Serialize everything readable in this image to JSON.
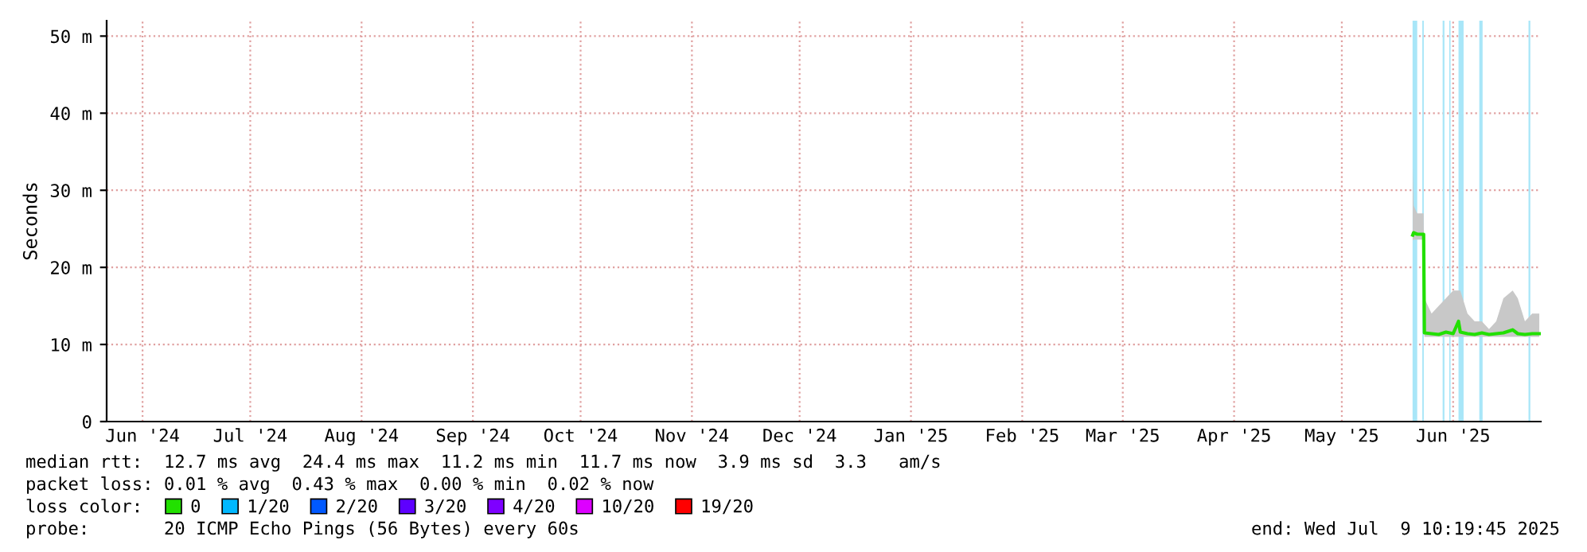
{
  "chart_data": {
    "type": "line",
    "ylabel": "Seconds",
    "xlim": [
      "2024-06-05",
      "2025-07-09T10:19"
    ],
    "xticks": [
      {
        "value": "2024-06-15",
        "label": "Jun '24"
      },
      {
        "value": "2024-07-15",
        "label": "Jul '24"
      },
      {
        "value": "2024-08-15",
        "label": "Aug '24"
      },
      {
        "value": "2024-09-15",
        "label": "Sep '24"
      },
      {
        "value": "2024-10-15",
        "label": "Oct '24"
      },
      {
        "value": "2024-11-15",
        "label": "Nov '24"
      },
      {
        "value": "2024-12-15",
        "label": "Dec '24"
      },
      {
        "value": "2025-01-15",
        "label": "Jan '25"
      },
      {
        "value": "2025-02-15",
        "label": "Feb '25"
      },
      {
        "value": "2025-03-15",
        "label": "Mar '25"
      },
      {
        "value": "2025-04-15",
        "label": "Apr '25"
      },
      {
        "value": "2025-05-15",
        "label": "May '25"
      },
      {
        "value": "2025-06-15",
        "label": "Jun '25"
      }
    ],
    "ylim": [
      0,
      52
    ],
    "yticks": [
      0,
      {
        "value": 10,
        "label": "10 m"
      },
      {
        "value": 20,
        "label": "20 m"
      },
      {
        "value": 30,
        "label": "30 m"
      },
      {
        "value": 40,
        "label": "40 m"
      },
      {
        "value": 50,
        "label": "50 m"
      }
    ],
    "grid": true,
    "legend": "bottom",
    "series": [
      {
        "name": "0",
        "color": "#22e000",
        "x": [
          "2025-06-03T18:00",
          "2025-06-04",
          "2025-06-05",
          "2025-06-06T19:00",
          "2025-06-07",
          "2025-06-09",
          "2025-06-11",
          "2025-06-13",
          "2025-06-15",
          "2025-06-16T12:00",
          "2025-06-17",
          "2025-06-19",
          "2025-06-21",
          "2025-06-23",
          "2025-06-25",
          "2025-06-27",
          "2025-06-29",
          "2025-07-01T14:00",
          "2025-07-03",
          "2025-07-05",
          "2025-07-07",
          "2025-07-09"
        ],
        "values": [
          24.2,
          24.5,
          24.3,
          24.3,
          11.5,
          11.4,
          11.3,
          11.6,
          11.4,
          13,
          11.6,
          11.4,
          11.3,
          11.5,
          11.3,
          11.4,
          11.5,
          11.9,
          11.4,
          11.3,
          11.4,
          11.4
        ],
        "lower": [
          23.5,
          23.6,
          23.6,
          23.6,
          11,
          11,
          11,
          11,
          11,
          11,
          11,
          11,
          11,
          11,
          11,
          11,
          11,
          11,
          11,
          11,
          11,
          11
        ],
        "upper": [
          33,
          28,
          27,
          27,
          16,
          14,
          15,
          16,
          17,
          17,
          17,
          14,
          13,
          13,
          12,
          13,
          16,
          17,
          16,
          13,
          14,
          14
        ]
      },
      {
        "name": "1/20",
        "color": "#00b8ff"
      },
      {
        "name": "2/20",
        "color": "#0059ff"
      },
      {
        "name": "3/20",
        "color": "#5e00ff"
      },
      {
        "name": "4/20",
        "color": "#7e00ff"
      },
      {
        "name": "10/20",
        "color": "#dd00ff"
      },
      {
        "name": "19/20",
        "color": "#ff0000"
      }
    ],
    "bands": [
      {
        "axis": "x",
        "from": "2025-06-03T17:00",
        "to": "2025-06-05",
        "color": "#a8e6f8"
      },
      {
        "axis": "x",
        "from": "2025-06-06T10:00",
        "to": "2025-06-06T20:00",
        "color": "#a8e6f8"
      },
      {
        "axis": "x",
        "from": "2025-06-12T02:00",
        "to": "2025-06-12T14:00",
        "color": "#a8e6f8"
      },
      {
        "axis": "x",
        "from": "2025-06-13T22:00",
        "to": "2025-06-14T07:00",
        "color": "#a8e6f8"
      },
      {
        "axis": "x",
        "from": "2025-06-16T12:00",
        "to": "2025-06-17T22:00",
        "color": "#a8e6f8"
      },
      {
        "axis": "x",
        "from": "2025-06-22T07:00",
        "to": "2025-06-23T05:00",
        "color": "#a8e6f8"
      },
      {
        "axis": "x",
        "from": "2025-07-06",
        "to": "2025-07-06T12:00",
        "color": "#a8e6f8"
      }
    ],
    "annotations": [
      "median rtt:  12.7 ms avg  24.4 ms max  11.2 ms min  11.7 ms now  3.9 ms sd  3.3   am/s",
      "packet loss: 0.01 % avg  0.43 % max  0.00 % min  0.02 % now",
      "loss color:",
      "probe:       20 ICMP Echo Pings (56 Bytes) every 60s",
      "end: Wed Jul  9 10:19:45 2025"
    ]
  }
}
